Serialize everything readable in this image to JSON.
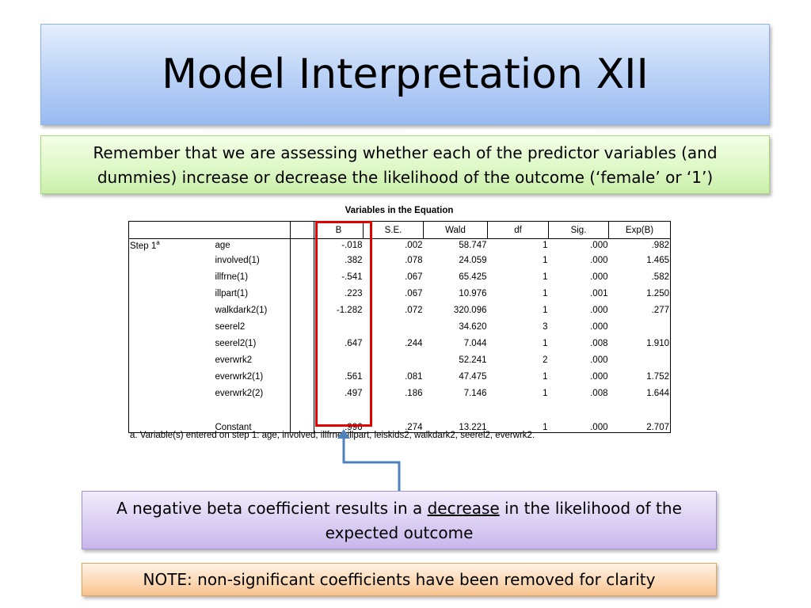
{
  "title": "Model Interpretation XII",
  "intro": {
    "line1": "Remember that we are assessing whether each of the predictor variables (and",
    "line2": "dummies) increase or decrease the likelihood of the outcome (‘female’ or ‘1’)"
  },
  "table": {
    "caption": "Variables in the Equation",
    "headers": [
      "B",
      "S.E.",
      "Wald",
      "df",
      "Sig.",
      "Exp(B)"
    ],
    "step_label": "Step 1",
    "step_superscript": "a",
    "rows": [
      {
        "name": "age",
        "b": "-.018",
        "se": ".002",
        "wald": "58.747",
        "df": "1",
        "sig": ".000",
        "expb": ".982"
      },
      {
        "name": "involved(1)",
        "b": ".382",
        "se": ".078",
        "wald": "24.059",
        "df": "1",
        "sig": ".000",
        "expb": "1.465"
      },
      {
        "name": "illfrne(1)",
        "b": "-.541",
        "se": ".067",
        "wald": "65.425",
        "df": "1",
        "sig": ".000",
        "expb": ".582"
      },
      {
        "name": "illpart(1)",
        "b": ".223",
        "se": ".067",
        "wald": "10.976",
        "df": "1",
        "sig": ".001",
        "expb": "1.250"
      },
      {
        "name": "walkdark2(1)",
        "b": "-1.282",
        "se": ".072",
        "wald": "320.096",
        "df": "1",
        "sig": ".000",
        "expb": ".277"
      },
      {
        "name": "seerel2",
        "b": "",
        "se": "",
        "wald": "34.620",
        "df": "3",
        "sig": ".000",
        "expb": ""
      },
      {
        "name": "seerel2(1)",
        "b": ".647",
        "se": ".244",
        "wald": "7.044",
        "df": "1",
        "sig": ".008",
        "expb": "1.910"
      },
      {
        "name": "everwrk2",
        "b": "",
        "se": "",
        "wald": "52.241",
        "df": "2",
        "sig": ".000",
        "expb": ""
      },
      {
        "name": "everwrk2(1)",
        "b": ".561",
        "se": ".081",
        "wald": "47.475",
        "df": "1",
        "sig": ".000",
        "expb": "1.752"
      },
      {
        "name": "everwrk2(2)",
        "b": ".497",
        "se": ".186",
        "wald": "7.146",
        "df": "1",
        "sig": ".008",
        "expb": "1.644"
      },
      {
        "name": "Constant",
        "b": ".996",
        "se": ".274",
        "wald": "13.221",
        "df": "1",
        "sig": ".000",
        "expb": "2.707"
      }
    ],
    "footnote": "a. Variable(s) entered on step 1: age, involved, illfrne, illpart, leiskids2, walkdark2, seerel2, everwrk2."
  },
  "callout": {
    "before": "A negative beta coefficient results in a ",
    "emphasis": "decrease",
    "after": " in the likelihood of the",
    "line2": "expected outcome"
  },
  "note": "NOTE: non-significant coefficients have been removed for clarity",
  "colors": {
    "highlight": "#e00000",
    "arrow": "#4f81bd"
  }
}
